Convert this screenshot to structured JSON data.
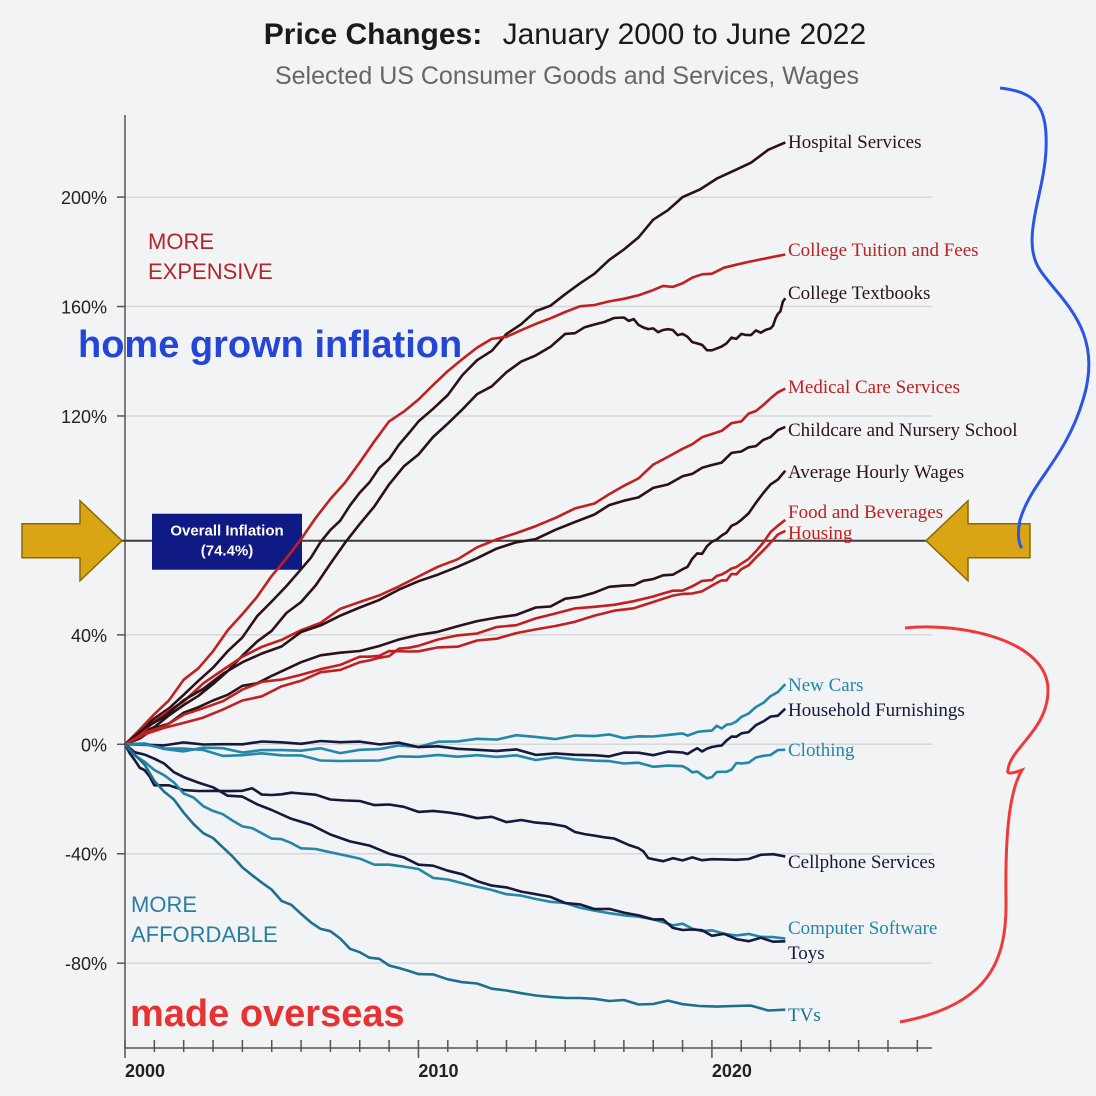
{
  "chart_data": {
    "type": "line",
    "title": "Price Changes:",
    "title_range": "January 2000 to June 2022",
    "subtitle": "Selected US Consumer Goods and Services, Wages",
    "x_ticks": [
      "2000",
      "2010",
      "2020"
    ],
    "y_ticks": [
      "200%",
      "160%",
      "120%",
      "40%",
      "0%",
      "-40%",
      "-80%"
    ],
    "xlim": [
      2000,
      2027.5
    ],
    "ylim": [
      -111,
      230
    ],
    "zone_labels": {
      "expensive_1": "MORE",
      "expensive_2": "EXPENSIVE",
      "affordable_1": "MORE",
      "affordable_2": "AFFORDABLE"
    },
    "reference": {
      "value": 74.4,
      "label_1": "Overall Inflation",
      "label_2": "(74.4%)"
    },
    "annotations": {
      "top": {
        "text": "home grown inflation",
        "color": "#2346d6"
      },
      "bottom": {
        "text": "made overseas",
        "color": "#e63232"
      }
    },
    "colors": {
      "red": "#c0201f",
      "dark": "#2a1218",
      "navy": "#15193a",
      "teal": "#2486a8",
      "teal_dark": "#1f6f8f",
      "arrow": "#d9a514",
      "box": "#101a84",
      "brace_blue": "#2a55e6",
      "brace_red": "#ee3a3a"
    },
    "series": [
      {
        "name": "Hospital Services",
        "color": "dark",
        "points": [
          [
            2000,
            0
          ],
          [
            2003,
            28
          ],
          [
            2006,
            64
          ],
          [
            2008,
            92
          ],
          [
            2010,
            118
          ],
          [
            2013,
            150
          ],
          [
            2016,
            172
          ],
          [
            2019,
            200
          ],
          [
            2022.5,
            220
          ]
        ]
      },
      {
        "name": "College Tuition and Fees",
        "color": "red",
        "points": [
          [
            2000,
            0
          ],
          [
            2003,
            34
          ],
          [
            2006,
            75
          ],
          [
            2009,
            118
          ],
          [
            2012,
            145
          ],
          [
            2015,
            158
          ],
          [
            2018,
            166
          ],
          [
            2020,
            172
          ],
          [
            2022.5,
            179
          ]
        ]
      },
      {
        "name": "College Textbooks",
        "color": "dark",
        "points": [
          [
            2000,
            0
          ],
          [
            2003,
            22
          ],
          [
            2006,
            52
          ],
          [
            2009,
            95
          ],
          [
            2012,
            128
          ],
          [
            2015,
            150
          ],
          [
            2017,
            156
          ],
          [
            2018,
            152
          ],
          [
            2019,
            150
          ],
          [
            2020,
            144
          ],
          [
            2021,
            150
          ],
          [
            2022,
            152
          ],
          [
            2022.5,
            163
          ]
        ]
      },
      {
        "name": "Medical Care Services",
        "color": "red",
        "points": [
          [
            2000,
            0
          ],
          [
            2004,
            32
          ],
          [
            2008,
            52
          ],
          [
            2012,
            72
          ],
          [
            2016,
            88
          ],
          [
            2019,
            108
          ],
          [
            2021,
            118
          ],
          [
            2022.5,
            130
          ]
        ]
      },
      {
        "name": "Childcare and Nursery School",
        "color": "dark",
        "points": [
          [
            2000,
            0
          ],
          [
            2004,
            30
          ],
          [
            2008,
            50
          ],
          [
            2012,
            68
          ],
          [
            2016,
            84
          ],
          [
            2019,
            98
          ],
          [
            2021,
            107
          ],
          [
            2022.5,
            116
          ]
        ]
      },
      {
        "name": "Average Hourly Wages",
        "color": "dark",
        "points": [
          [
            2000,
            0
          ],
          [
            2003,
            16
          ],
          [
            2006,
            30
          ],
          [
            2010,
            40
          ],
          [
            2014,
            50
          ],
          [
            2017,
            58
          ],
          [
            2019,
            64
          ],
          [
            2020,
            74
          ],
          [
            2021,
            82
          ],
          [
            2022.5,
            100
          ]
        ]
      },
      {
        "name": "Food and Beverages",
        "color": "red",
        "points": [
          [
            2000,
            0
          ],
          [
            2004,
            16
          ],
          [
            2008,
            30
          ],
          [
            2010,
            36
          ],
          [
            2014,
            46
          ],
          [
            2018,
            54
          ],
          [
            2020,
            60
          ],
          [
            2021,
            66
          ],
          [
            2022.5,
            82
          ]
        ]
      },
      {
        "name": "Housing",
        "color": "red",
        "points": [
          [
            2000,
            0
          ],
          [
            2004,
            20
          ],
          [
            2008,
            32
          ],
          [
            2010,
            34
          ],
          [
            2014,
            42
          ],
          [
            2018,
            52
          ],
          [
            2020,
            58
          ],
          [
            2021,
            64
          ],
          [
            2022.5,
            78
          ]
        ]
      },
      {
        "name": "New Cars",
        "color": "teal",
        "points": [
          [
            2000,
            0
          ],
          [
            2004,
            -3
          ],
          [
            2008,
            -2
          ],
          [
            2012,
            2
          ],
          [
            2016,
            3
          ],
          [
            2019,
            4
          ],
          [
            2020,
            5
          ],
          [
            2021,
            10
          ],
          [
            2022.5,
            22
          ]
        ]
      },
      {
        "name": "Household Furnishings",
        "color": "navy",
        "points": [
          [
            2000,
            0
          ],
          [
            2004,
            0
          ],
          [
            2008,
            1
          ],
          [
            2012,
            -2
          ],
          [
            2016,
            -4
          ],
          [
            2019,
            -3
          ],
          [
            2020,
            -1
          ],
          [
            2021,
            4
          ],
          [
            2022.5,
            13
          ]
        ]
      },
      {
        "name": "Clothing",
        "color": "teal",
        "points": [
          [
            2000,
            0
          ],
          [
            2004,
            -4
          ],
          [
            2008,
            -6
          ],
          [
            2012,
            -4
          ],
          [
            2016,
            -6
          ],
          [
            2019,
            -8
          ],
          [
            2020,
            -12
          ],
          [
            2021,
            -7
          ],
          [
            2022.5,
            -2
          ]
        ]
      },
      {
        "name": "Cellphone Services",
        "color": "navy",
        "points": [
          [
            2000,
            0
          ],
          [
            2001,
            -15
          ],
          [
            2004,
            -17
          ],
          [
            2006,
            -18
          ],
          [
            2009,
            -22
          ],
          [
            2012,
            -27
          ],
          [
            2015,
            -30
          ],
          [
            2017,
            -36
          ],
          [
            2018,
            -42
          ],
          [
            2020,
            -42
          ],
          [
            2022.5,
            -41
          ]
        ]
      },
      {
        "name": "Computer Software",
        "color": "teal",
        "points": [
          [
            2000,
            0
          ],
          [
            2002,
            -18
          ],
          [
            2004,
            -30
          ],
          [
            2006,
            -38
          ],
          [
            2009,
            -44
          ],
          [
            2012,
            -52
          ],
          [
            2015,
            -58
          ],
          [
            2018,
            -64
          ],
          [
            2020,
            -68
          ],
          [
            2022.5,
            -71
          ]
        ]
      },
      {
        "name": "Toys",
        "color": "navy",
        "points": [
          [
            2000,
            0
          ],
          [
            2002,
            -12
          ],
          [
            2005,
            -24
          ],
          [
            2009,
            -40
          ],
          [
            2012,
            -50
          ],
          [
            2015,
            -58
          ],
          [
            2018,
            -64
          ],
          [
            2020,
            -70
          ],
          [
            2022.5,
            -72
          ]
        ]
      },
      {
        "name": "TVs",
        "color": "teal_dark",
        "points": [
          [
            2000,
            0
          ],
          [
            2002,
            -25
          ],
          [
            2004,
            -45
          ],
          [
            2006,
            -62
          ],
          [
            2008,
            -76
          ],
          [
            2010,
            -84
          ],
          [
            2013,
            -90
          ],
          [
            2016,
            -93
          ],
          [
            2019,
            -95
          ],
          [
            2022.5,
            -97
          ]
        ]
      }
    ]
  }
}
